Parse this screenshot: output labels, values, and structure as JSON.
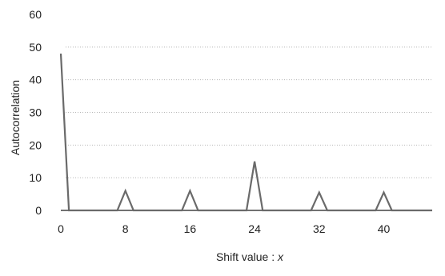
{
  "chart_data": {
    "type": "line",
    "title": "",
    "xlabel": "Shift value : x",
    "ylabel": "Autocorrelation",
    "xlim": [
      0,
      46
    ],
    "ylim": [
      0,
      60
    ],
    "x_ticks": [
      0,
      8,
      16,
      24,
      32,
      40
    ],
    "y_ticks": [
      0,
      10,
      20,
      30,
      40,
      50,
      60
    ],
    "grid": true,
    "legend": "none",
    "colors": {
      "line": "#6a6a6a",
      "grid": "#b8b8b8",
      "axis": "#444444",
      "text": "#222222"
    },
    "series": [
      {
        "x": [
          0,
          1,
          2,
          3,
          4,
          5,
          6,
          7,
          8,
          9,
          10,
          11,
          12,
          13,
          14,
          15,
          16,
          17,
          18,
          19,
          20,
          21,
          22,
          23,
          24,
          25,
          26,
          27,
          28,
          29,
          30,
          31,
          32,
          33,
          34,
          35,
          36,
          37,
          38,
          39,
          40,
          41,
          42,
          43,
          44,
          45,
          46
        ],
        "values": [
          48,
          0,
          0,
          0,
          0,
          0,
          0,
          0,
          6,
          0,
          0,
          0,
          0,
          0,
          0,
          0,
          6,
          0,
          0,
          0,
          0,
          0,
          0,
          0,
          15,
          0,
          0,
          0,
          0,
          0,
          0,
          0,
          5.5,
          0,
          0,
          0,
          0,
          0,
          0,
          0,
          5.5,
          0,
          0,
          0,
          0,
          0,
          0
        ]
      }
    ]
  }
}
